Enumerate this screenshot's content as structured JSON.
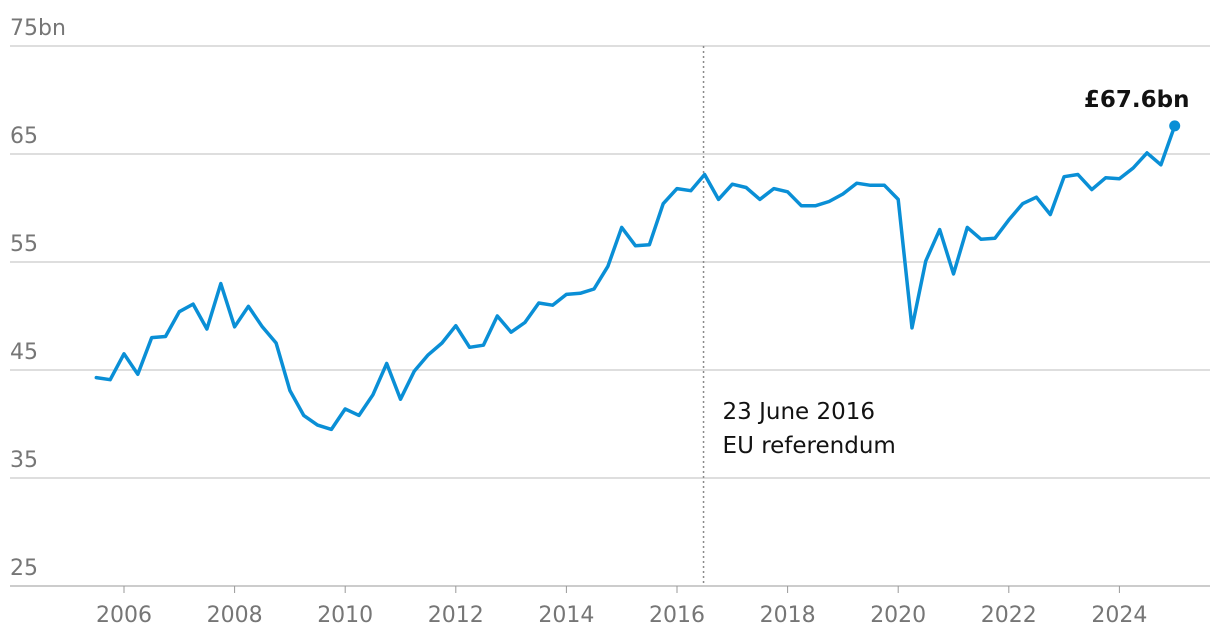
{
  "chart_data": {
    "type": "line",
    "title": "",
    "xlabel": "",
    "ylabel": "",
    "xlim": [
      2005.0,
      2026.0
    ],
    "ylim": [
      25,
      75
    ],
    "y_ticks": [
      {
        "value": 75,
        "label": "75bn"
      },
      {
        "value": 65,
        "label": "65"
      },
      {
        "value": 55,
        "label": "55"
      },
      {
        "value": 45,
        "label": "45"
      },
      {
        "value": 35,
        "label": "35"
      },
      {
        "value": 25,
        "label": "25"
      }
    ],
    "x_ticks": [
      {
        "value": 2006,
        "label": "2006"
      },
      {
        "value": 2008,
        "label": "2008"
      },
      {
        "value": 2010,
        "label": "2010"
      },
      {
        "value": 2012,
        "label": "2012"
      },
      {
        "value": 2014,
        "label": "2014"
      },
      {
        "value": 2016,
        "label": "2016"
      },
      {
        "value": 2018,
        "label": "2018"
      },
      {
        "value": 2020,
        "label": "2020"
      },
      {
        "value": 2022,
        "label": "2022"
      },
      {
        "value": 2024,
        "label": "2024"
      }
    ],
    "grid": true,
    "color": "#0a8fd6",
    "series": [
      {
        "x": [
          2005.5,
          2005.75,
          2006.0,
          2006.25,
          2006.5,
          2006.75,
          2007.0,
          2007.25,
          2007.5,
          2007.75,
          2008.0,
          2008.25,
          2008.5,
          2008.75,
          2009.0,
          2009.25,
          2009.5,
          2009.75,
          2010.0,
          2010.25,
          2010.5,
          2010.75,
          2011.0,
          2011.25,
          2011.5,
          2011.75,
          2012.0,
          2012.25,
          2012.5,
          2012.75,
          2013.0,
          2013.25,
          2013.5,
          2013.75,
          2014.0,
          2014.25,
          2014.5,
          2014.75,
          2015.0,
          2015.25,
          2015.5,
          2015.75,
          2016.0,
          2016.25,
          2016.5,
          2016.75,
          2017.0,
          2017.25,
          2017.5,
          2017.75,
          2018.0,
          2018.25,
          2018.5,
          2018.75,
          2019.0,
          2019.25,
          2019.5,
          2019.75,
          2020.0,
          2020.25,
          2020.5,
          2020.75,
          2021.0,
          2021.25,
          2021.5,
          2021.75,
          2022.0,
          2022.25,
          2022.5,
          2022.75,
          2023.0,
          2023.25,
          2023.5,
          2023.75,
          2024.0,
          2024.25,
          2024.5,
          2024.75,
          2025.0
        ],
        "values": [
          44.3,
          44.1,
          46.5,
          44.6,
          48.0,
          48.1,
          50.4,
          51.1,
          48.8,
          53.0,
          49.0,
          50.9,
          49.0,
          47.5,
          43.1,
          40.8,
          39.9,
          39.5,
          41.4,
          40.8,
          42.7,
          45.6,
          42.3,
          44.9,
          46.4,
          47.5,
          49.1,
          47.1,
          47.3,
          50.0,
          48.5,
          49.4,
          51.2,
          51.0,
          52.0,
          52.1,
          52.5,
          54.6,
          58.2,
          56.5,
          56.6,
          60.4,
          61.8,
          61.6,
          63.1,
          60.8,
          62.2,
          61.9,
          60.8,
          61.8,
          61.5,
          60.2,
          60.2,
          60.6,
          61.3,
          62.3,
          62.1,
          62.1,
          60.8,
          48.9,
          55.1,
          58.0,
          53.9,
          58.2,
          57.1,
          57.2,
          58.9,
          60.4,
          61.0,
          59.4,
          62.9,
          63.1,
          61.7,
          62.8,
          62.7,
          63.7,
          65.1,
          64.0,
          67.6
        ]
      }
    ],
    "annotations": [
      {
        "x": 2016.48,
        "line1": "23 June 2016",
        "line2": "EU referendum"
      },
      {
        "x": 2025.0,
        "y": 67.6,
        "label": "£67.6bn"
      }
    ]
  }
}
